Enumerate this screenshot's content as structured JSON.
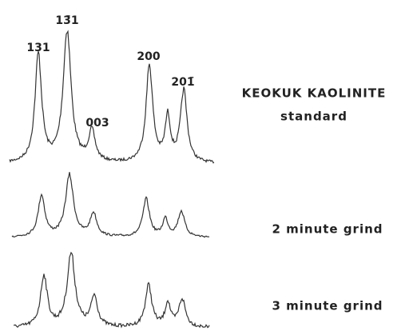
{
  "peak_labels": [
    "131",
    "13̄1",
    "003",
    "200",
    "201̄"
  ],
  "traces": [
    {
      "title": "KEOKUK KAOLINITE",
      "subtitle": "standard"
    },
    {
      "title": "2 minute grind"
    },
    {
      "title": "3 minute grind"
    }
  ]
}
